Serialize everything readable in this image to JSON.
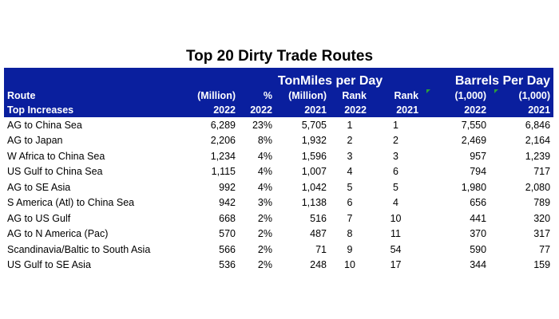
{
  "title": "Top 20 Dirty Trade Routes",
  "header": {
    "group_tonmiles": "TonMiles per Day",
    "group_barrels": "Barrels Per Day",
    "col_route": "Route",
    "col_route_sub": "Top Increases",
    "col_tm2022_unit": "(Million)",
    "col_tm2022_year": "2022",
    "col_pct_unit": "%",
    "col_pct_year": "2022",
    "col_tm2021_unit": "(Million)",
    "col_tm2021_year": "2021",
    "col_rank2022_label": "Rank",
    "col_rank2022_year": "2022",
    "col_rank2021_label": "Rank",
    "col_rank2021_year": "2021",
    "col_bpd2022_unit": "(1,000)",
    "col_bpd2022_year": "2022",
    "col_bpd2021_unit": "(1,000)",
    "col_bpd2021_year": "2021"
  },
  "rows": [
    {
      "route": "AG to China Sea",
      "tm2022": "6,289",
      "pct": "23%",
      "tm2021": "5,705",
      "rank2022": "1",
      "rank2021": "1",
      "bpd2022": "7,550",
      "bpd2021": "6,846"
    },
    {
      "route": "AG to Japan",
      "tm2022": "2,206",
      "pct": "8%",
      "tm2021": "1,932",
      "rank2022": "2",
      "rank2021": "2",
      "bpd2022": "2,469",
      "bpd2021": "2,164"
    },
    {
      "route": "W Africa to China Sea",
      "tm2022": "1,234",
      "pct": "4%",
      "tm2021": "1,596",
      "rank2022": "3",
      "rank2021": "3",
      "bpd2022": "957",
      "bpd2021": "1,239"
    },
    {
      "route": "US Gulf to China Sea",
      "tm2022": "1,115",
      "pct": "4%",
      "tm2021": "1,007",
      "rank2022": "4",
      "rank2021": "6",
      "bpd2022": "794",
      "bpd2021": "717"
    },
    {
      "route": "AG to SE Asia",
      "tm2022": "992",
      "pct": "4%",
      "tm2021": "1,042",
      "rank2022": "5",
      "rank2021": "5",
      "bpd2022": "1,980",
      "bpd2021": "2,080"
    },
    {
      "route": "S America (Atl) to China Sea",
      "tm2022": "942",
      "pct": "3%",
      "tm2021": "1,138",
      "rank2022": "6",
      "rank2021": "4",
      "bpd2022": "656",
      "bpd2021": "789"
    },
    {
      "route": "AG to US Gulf",
      "tm2022": "668",
      "pct": "2%",
      "tm2021": "516",
      "rank2022": "7",
      "rank2021": "10",
      "bpd2022": "441",
      "bpd2021": "320"
    },
    {
      "route": "AG to N America (Pac)",
      "tm2022": "570",
      "pct": "2%",
      "tm2021": "487",
      "rank2022": "8",
      "rank2021": "11",
      "bpd2022": "370",
      "bpd2021": "317"
    },
    {
      "route": "Scandinavia/Baltic to South Asia",
      "tm2022": "566",
      "pct": "2%",
      "tm2021": "71",
      "rank2022": "9",
      "rank2021": "54",
      "bpd2022": "590",
      "bpd2021": "77"
    },
    {
      "route": "US Gulf to SE Asia",
      "tm2022": "536",
      "pct": "2%",
      "tm2021": "248",
      "rank2022": "10",
      "rank2021": "17",
      "bpd2022": "344",
      "bpd2021": "159"
    }
  ],
  "colors": {
    "header_bg": "#0a1f9e",
    "header_text": "#ffffff",
    "comment_marker": "#2e9e3a"
  }
}
